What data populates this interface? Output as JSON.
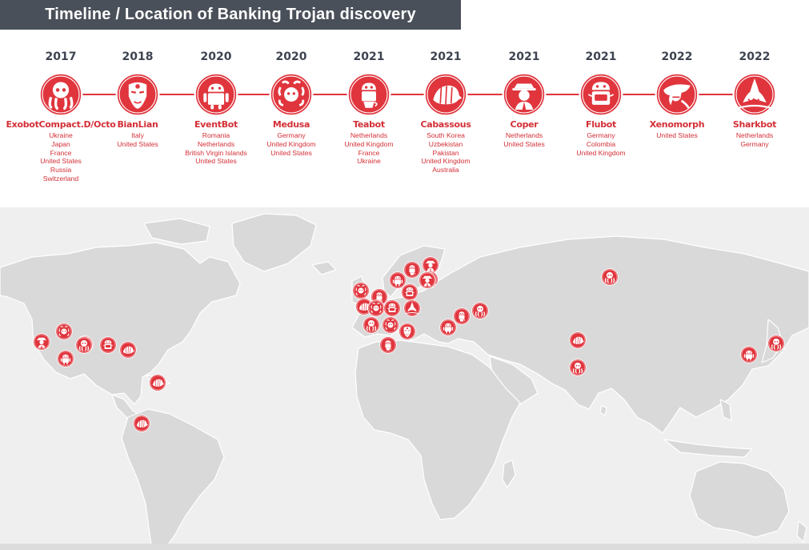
{
  "title": "Timeline / Location of Banking Trojan discovery",
  "colors": {
    "accent": "#e0353d",
    "title_bg": "#4a5059",
    "land": "#d9d9d9",
    "sea": "#efefef"
  },
  "timeline": [
    {
      "year": "2017",
      "name": "ExobotCompact.D/Octo",
      "icon": "octopus-icon",
      "countries": [
        "Ukraine",
        "Japan",
        "France",
        "United States",
        "Russia",
        "Switzerland"
      ]
    },
    {
      "year": "2018",
      "name": "BianLian",
      "icon": "opera-mask-icon",
      "countries": [
        "Italy",
        "United States"
      ]
    },
    {
      "year": "2020",
      "name": "EventBot",
      "icon": "android-robot-icon",
      "countries": [
        "Romania",
        "Netherlands",
        "British Virgin Islands",
        "United States"
      ]
    },
    {
      "year": "2020",
      "name": "Medusa",
      "icon": "medusa-icon",
      "countries": [
        "Germany",
        "United Kingdom",
        "United States"
      ]
    },
    {
      "year": "2021",
      "name": "Teabot",
      "icon": "android-teacup-icon",
      "countries": [
        "Netherlands",
        "United Kingdom",
        "France",
        "Ukraine"
      ]
    },
    {
      "year": "2021",
      "name": "Cabassous",
      "icon": "armadillo-icon",
      "countries": [
        "South Korea",
        "Uzbekistan",
        "Pakistan",
        "United Kingdom",
        "Australia"
      ]
    },
    {
      "year": "2021",
      "name": "Coper",
      "icon": "gangster-icon",
      "countries": [
        "Netherlands",
        "United States"
      ]
    },
    {
      "year": "2021",
      "name": "Flubot",
      "icon": "android-mask-icon",
      "countries": [
        "Germany",
        "Colombia",
        "United Kingdom"
      ]
    },
    {
      "year": "2022",
      "name": "Xenomorph",
      "icon": "alien-icon",
      "countries": [
        "United States"
      ]
    },
    {
      "year": "2022",
      "name": "Sharkbot",
      "icon": "shark-icon",
      "countries": [
        "Netherlands",
        "Germany"
      ]
    }
  ],
  "map_markers": [
    {
      "trojan": "Teabot",
      "icon": "android-teacup-icon"
    },
    {
      "trojan": "Coper",
      "icon": "gangster-icon"
    },
    {
      "trojan": "Sharkbot",
      "icon": "shark-icon"
    },
    {
      "trojan": "EventBot",
      "icon": "android-robot-icon"
    },
    {
      "trojan": "Coper",
      "icon": "gangster-icon"
    },
    {
      "trojan": "Medusa",
      "icon": "medusa-icon"
    },
    {
      "trojan": "Teabot",
      "icon": "android-teacup-icon"
    },
    {
      "trojan": "Flubot",
      "icon": "android-mask-icon"
    },
    {
      "trojan": "Cabassous",
      "icon": "armadillo-icon"
    },
    {
      "trojan": "Medusa",
      "icon": "medusa-icon"
    },
    {
      "trojan": "Flubot",
      "icon": "android-mask-icon"
    },
    {
      "trojan": "Sharkbot",
      "icon": "shark-icon"
    },
    {
      "trojan": "Medusa",
      "icon": "medusa-icon"
    },
    {
      "trojan": "ExobotCompact.D/Octo",
      "icon": "octopus-icon"
    },
    {
      "trojan": "BianLian",
      "icon": "opera-mask-icon"
    },
    {
      "trojan": "Teabot",
      "icon": "android-teacup-icon"
    },
    {
      "trojan": "ExobotCompact.D/Octo",
      "icon": "octopus-icon"
    },
    {
      "trojan": "Teabot",
      "icon": "android-teacup-icon"
    },
    {
      "trojan": "EventBot",
      "icon": "android-robot-icon"
    },
    {
      "trojan": "ExobotCompact.D/Octo",
      "icon": "octopus-icon"
    },
    {
      "trojan": "Cabassous",
      "icon": "armadillo-icon"
    },
    {
      "trojan": "ExobotCompact.D/Octo",
      "icon": "octopus-icon"
    },
    {
      "trojan": "EventBot",
      "icon": "android-robot-icon"
    },
    {
      "trojan": "ExobotCompact.D/Octo",
      "icon": "octopus-icon"
    },
    {
      "trojan": "Coper",
      "icon": "gangster-icon"
    },
    {
      "trojan": "Medusa",
      "icon": "medusa-icon"
    },
    {
      "trojan": "Cabassous",
      "icon": "armadillo-icon"
    },
    {
      "trojan": "EventBot",
      "icon": "android-robot-icon"
    },
    {
      "trojan": "Flubot",
      "icon": "android-mask-icon"
    },
    {
      "trojan": "Cabassous",
      "icon": "armadillo-icon"
    },
    {
      "trojan": "Cabassous",
      "icon": "armadillo-icon"
    },
    {
      "trojan": "Cabassous",
      "icon": "armadillo-icon"
    },
    {
      "trojan": "ExobotCompact.D/Octo",
      "icon": "octopus-icon"
    }
  ]
}
